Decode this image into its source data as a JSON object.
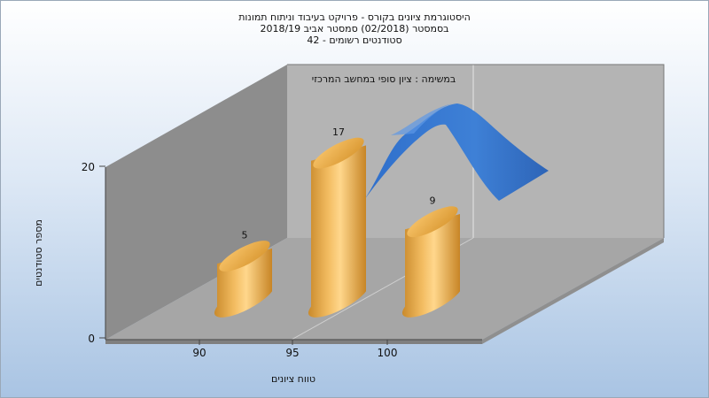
{
  "colors": {
    "bar": "#e9a640",
    "curve": "#3b78d0",
    "back_wall": "#b4b4b4",
    "side_wall": "#8d8d8d",
    "floor": "#a6a6a6"
  },
  "chart_data": {
    "type": "bar",
    "title_lines": [
      "היסטוגרמת ציונים בקורס - פרויקט בעיבוד וניתוח תמונות",
      "בסמסטר  (02/2018)  סמסטר אביב  2018/19",
      "סטודנטים רשומים - 42"
    ],
    "categories": [
      "90",
      "95",
      "100"
    ],
    "values": [
      5,
      17,
      9
    ],
    "bar_shape": "cylinder",
    "overlay_curve": {
      "type": "normal-curve",
      "label": "במשימה : ציון סופי במחשב המרכזי"
    },
    "xlabel": "טווח ציונים",
    "ylabel": "מספר סטודנטים",
    "yticks": [
      "0",
      "20"
    ],
    "ylim": [
      0,
      20
    ],
    "legend_position": "top-center",
    "three_d": true,
    "grid": true
  }
}
